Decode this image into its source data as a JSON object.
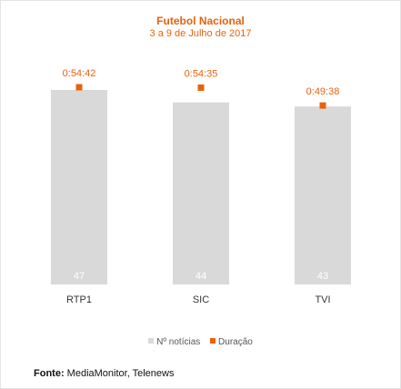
{
  "chart_data": {
    "type": "bar",
    "title": "Futebol Nacional",
    "subtitle": "3 a 9 de Julho de 2017",
    "categories": [
      "RTP1",
      "SIC",
      "TVI"
    ],
    "series": [
      {
        "name": "Nº notícias",
        "type": "bar",
        "values": [
          47,
          44,
          43
        ],
        "color": "#d9d9d9"
      },
      {
        "name": "Duração",
        "type": "scatter",
        "values": [
          "0:54:42",
          "0:54:35",
          "0:49:38"
        ],
        "color": "#e8620c"
      }
    ],
    "legend_position": "bottom",
    "grid": false
  },
  "source": {
    "label": "Fonte:",
    "text": " MediaMonitor, Telenews"
  }
}
